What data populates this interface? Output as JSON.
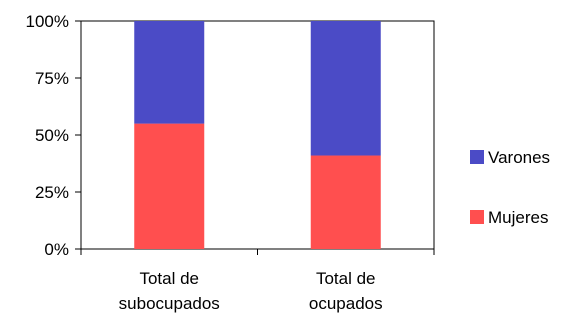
{
  "chart_data": {
    "type": "bar",
    "stacked": true,
    "percent_stacked": true,
    "categories": [
      [
        "Total de",
        "subocupados"
      ],
      [
        "Total de",
        "ocupados"
      ]
    ],
    "series": [
      {
        "name": "Mujeres",
        "color": "#ff4f4f",
        "values": [
          55,
          41
        ]
      },
      {
        "name": "Varones",
        "color": "#4b4bc6",
        "values": [
          45,
          59
        ]
      }
    ],
    "y_ticks": [
      "0%",
      "25%",
      "50%",
      "75%",
      "100%"
    ],
    "ylim": [
      0,
      100
    ],
    "grid": false,
    "legend": "right"
  }
}
